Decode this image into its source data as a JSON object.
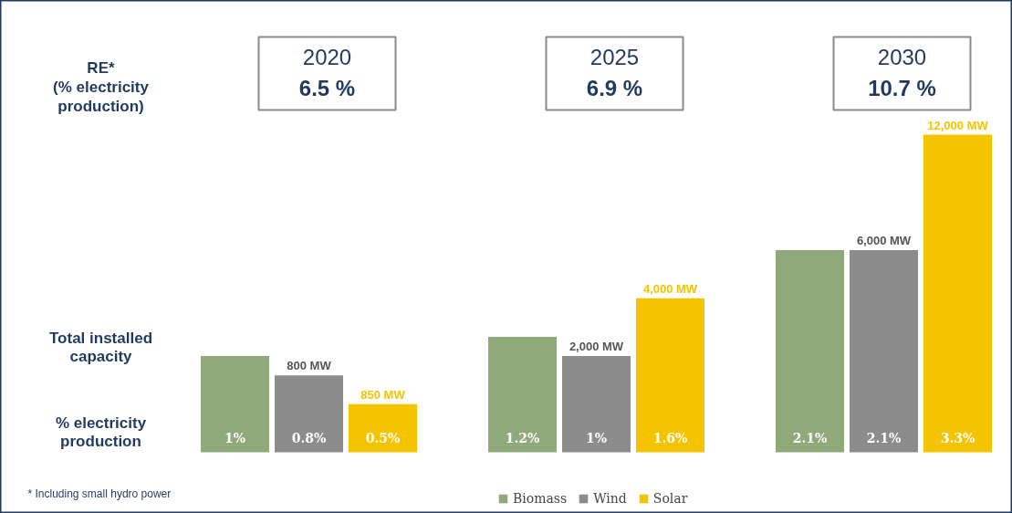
{
  "chart_data": {
    "type": "bar",
    "categories": [
      "2020",
      "2025",
      "2030"
    ],
    "series": [
      {
        "name": "Biomass",
        "color": "#8fa97b",
        "values": [
          1,
          1.2,
          2.1
        ],
        "value_labels": [
          "1%",
          "1.2%",
          "2.1%"
        ]
      },
      {
        "name": "Wind",
        "color": "#8c8c8c",
        "values": [
          0.8,
          1,
          2.1
        ],
        "value_labels": [
          "0.8%",
          "1%",
          "2.1%"
        ]
      },
      {
        "name": "Solar",
        "color": "#f5c400",
        "values": [
          0.5,
          1.6,
          3.3
        ],
        "value_labels": [
          "0.5%",
          "1.6%",
          "3.3%"
        ]
      }
    ],
    "annotations": [
      "RE*\n(% electricity\nproduction)",
      "Total installed\ncapacity",
      "% electricity\nproduction",
      "* Including small hydro power",
      "6.5 %",
      "6.9 %",
      "10.7 %",
      {
        "text": "800 MW",
        "x": "2020",
        "y": 0.8
      },
      "850 MW",
      {
        "text": "2,000 MW",
        "x": "2025",
        "y": 1
      },
      "4,000 MW",
      {
        "text": "6,000 MW",
        "x": "2030",
        "y": 2.1
      },
      "12,000 MW"
    ],
    "legend": "bottom"
  }
}
